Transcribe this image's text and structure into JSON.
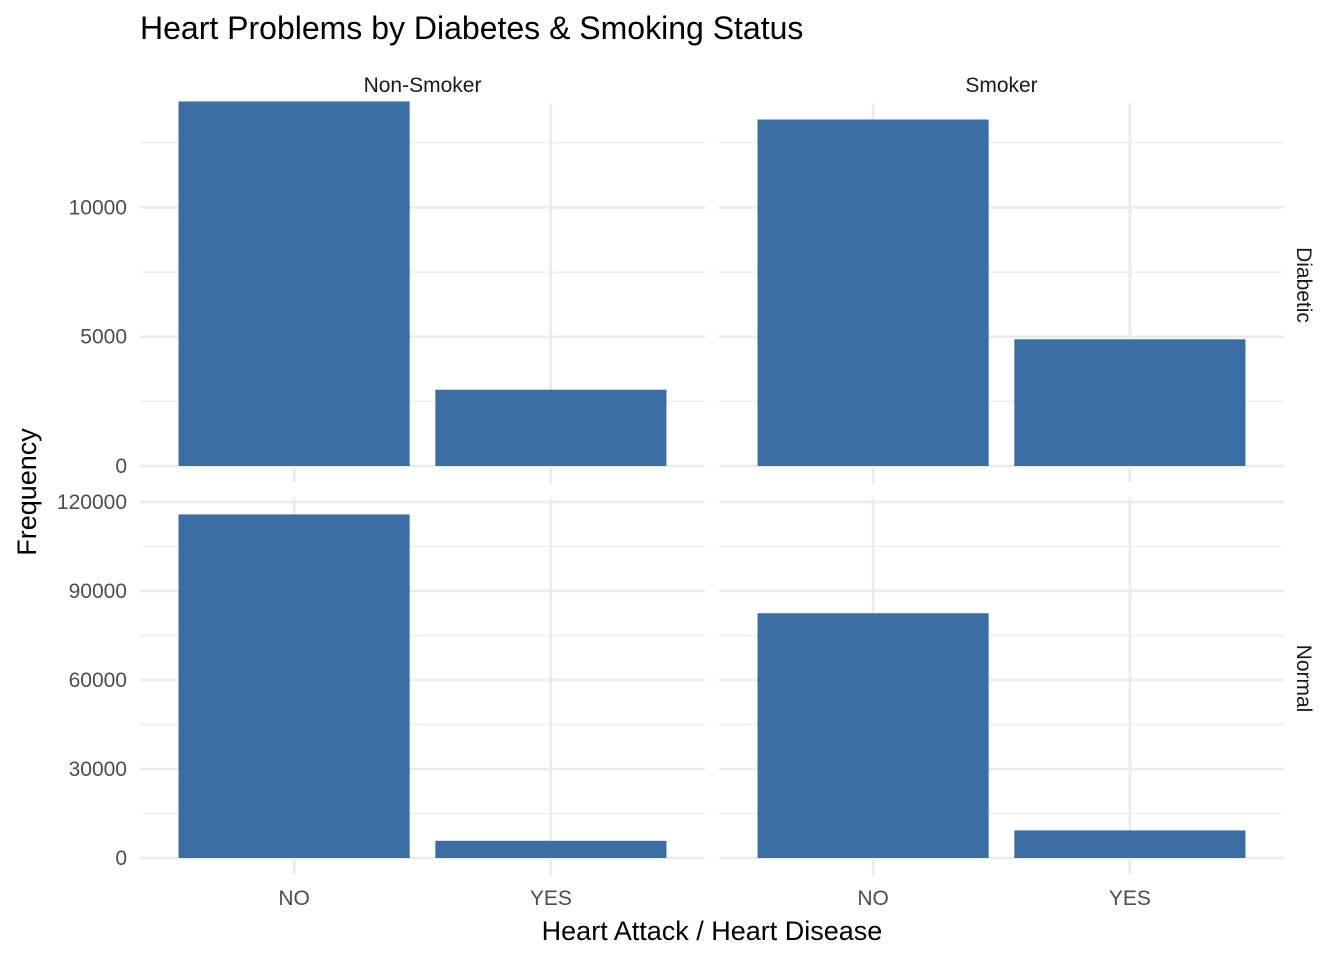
{
  "chart_data": {
    "type": "bar",
    "title": "Heart Problems by Diabetes & Smoking Status",
    "xlabel": "Heart Attack / Heart Disease",
    "ylabel": "Frequency",
    "categories": [
      "NO",
      "YES"
    ],
    "facet_columns": [
      "Non-Smoker",
      "Smoker"
    ],
    "facet_rows": [
      "Diabetic",
      "Normal"
    ],
    "bar_color": "#3a6ea5",
    "grid": true,
    "scales": "free_y",
    "rows": [
      {
        "name": "Diabetic",
        "ylim": [
          0,
          14000
        ],
        "yticks": [
          0,
          5000,
          10000
        ],
        "ytick_labels": [
          "0",
          "5000",
          "10000"
        ],
        "panels": [
          {
            "column": "Non-Smoker",
            "values": [
              14100,
              2950
            ]
          },
          {
            "column": "Smoker",
            "values": [
              13400,
              4900
            ]
          }
        ]
      },
      {
        "name": "Normal",
        "ylim": [
          0,
          121000
        ],
        "yticks": [
          0,
          30000,
          60000,
          90000,
          120000
        ],
        "ytick_labels": [
          "0",
          "30000",
          "60000",
          "90000",
          "120000"
        ],
        "panels": [
          {
            "column": "Non-Smoker",
            "values": [
              115800,
              5800
            ]
          },
          {
            "column": "Smoker",
            "values": [
              82500,
              9300
            ]
          }
        ]
      }
    ]
  }
}
